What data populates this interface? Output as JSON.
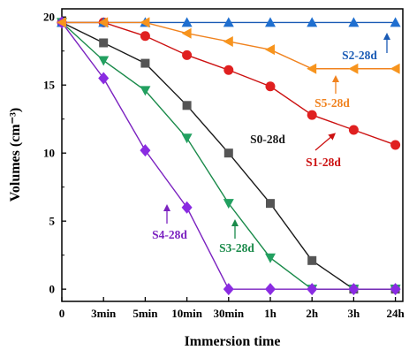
{
  "chart_data": {
    "type": "line",
    "xlabel": "Immersion time",
    "ylabel": "Volumes (cm⁻³)",
    "categories": [
      "0",
      "3min",
      "5min",
      "10min",
      "30min",
      "1h",
      "2h",
      "3h",
      "24h"
    ],
    "ylim": [
      0,
      20
    ],
    "yticks": [
      0,
      5,
      10,
      15,
      20
    ],
    "grid": false,
    "legend": "none",
    "series": [
      {
        "name": "S0-28d",
        "color": "#1a1a1a",
        "fill": "#555555",
        "marker": "square",
        "values": [
          19.6,
          18.1,
          16.6,
          13.5,
          10.0,
          6.3,
          2.1,
          0,
          0
        ]
      },
      {
        "name": "S1-28d",
        "color": "#cc1111",
        "fill": "#e02020",
        "marker": "circle",
        "values": [
          19.6,
          19.6,
          18.6,
          17.2,
          16.1,
          14.9,
          12.8,
          11.7,
          10.6
        ]
      },
      {
        "name": "S2-28d",
        "color": "#1a5bb5",
        "fill": "#1f6fd0",
        "marker": "triangle-up",
        "values": [
          19.6,
          19.6,
          19.6,
          19.6,
          19.6,
          19.6,
          19.6,
          19.6,
          19.6
        ]
      },
      {
        "name": "S3-28d",
        "color": "#1a8a4a",
        "fill": "#22a060",
        "marker": "triangle-down",
        "values": [
          19.6,
          16.8,
          14.6,
          11.1,
          6.3,
          2.3,
          0,
          0,
          0
        ]
      },
      {
        "name": "S4-28d",
        "color": "#7b22c0",
        "fill": "#8a2be2",
        "marker": "diamond",
        "values": [
          19.6,
          15.5,
          10.2,
          6.0,
          0,
          0,
          0,
          0,
          0
        ]
      },
      {
        "name": "S5-28d",
        "color": "#f0821e",
        "fill": "#f7941d",
        "marker": "triangle-left",
        "values": [
          19.6,
          19.6,
          19.6,
          18.8,
          18.2,
          17.6,
          16.2,
          16.2,
          16.2
        ]
      }
    ],
    "annotations": [
      {
        "text": "S2-28d",
        "series": "S2-28d"
      },
      {
        "text": "S5-28d",
        "series": "S5-28d"
      },
      {
        "text": "S1-28d",
        "series": "S1-28d"
      },
      {
        "text": "S0-28d",
        "series": "S0-28d"
      },
      {
        "text": "S3-28d",
        "series": "S3-28d"
      },
      {
        "text": "S4-28d",
        "series": "S4-28d"
      }
    ]
  }
}
